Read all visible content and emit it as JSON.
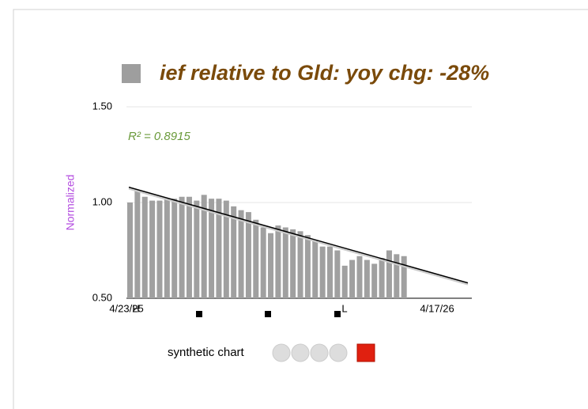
{
  "chart_data": {
    "type": "bar",
    "title": "ief relative to Gld:  yoy chg: -28%",
    "y_label": "Normalized",
    "annotation": "R² = 0.8915",
    "categories": [
      null,
      null,
      null,
      null,
      null,
      null,
      null,
      null,
      null,
      null,
      null,
      null,
      null,
      null,
      null,
      null,
      null,
      null,
      null,
      null,
      null,
      null,
      null,
      null,
      null,
      null,
      null,
      null,
      null,
      null,
      null,
      null,
      null,
      null,
      null,
      null,
      null,
      null
    ],
    "values": [
      1.0,
      1.06,
      1.03,
      1.01,
      1.01,
      1.02,
      1.02,
      1.03,
      1.03,
      1.01,
      1.04,
      1.02,
      1.02,
      1.01,
      0.98,
      0.96,
      0.95,
      0.91,
      0.87,
      0.84,
      0.88,
      0.87,
      0.86,
      0.85,
      0.83,
      0.8,
      0.77,
      0.77,
      0.75,
      0.67,
      0.7,
      0.72,
      0.7,
      0.68,
      0.71,
      0.75,
      0.73,
      0.72
    ],
    "color": "#a0a0a0",
    "x_labels": [
      "4/23/25",
      "4/17/26"
    ],
    "markers": [
      "H",
      "L"
    ],
    "trendline": {
      "start": 1.08,
      "end": 0.58
    },
    "ylim": [
      0.5,
      1.5
    ],
    "yticks": [
      {
        "value": 0.5,
        "label": "0.50"
      },
      {
        "value": 1.0,
        "label": "1.00"
      },
      {
        "value": 1.5,
        "label": "1.50"
      }
    ],
    "grid": true,
    "footer": "synthetic chart"
  }
}
